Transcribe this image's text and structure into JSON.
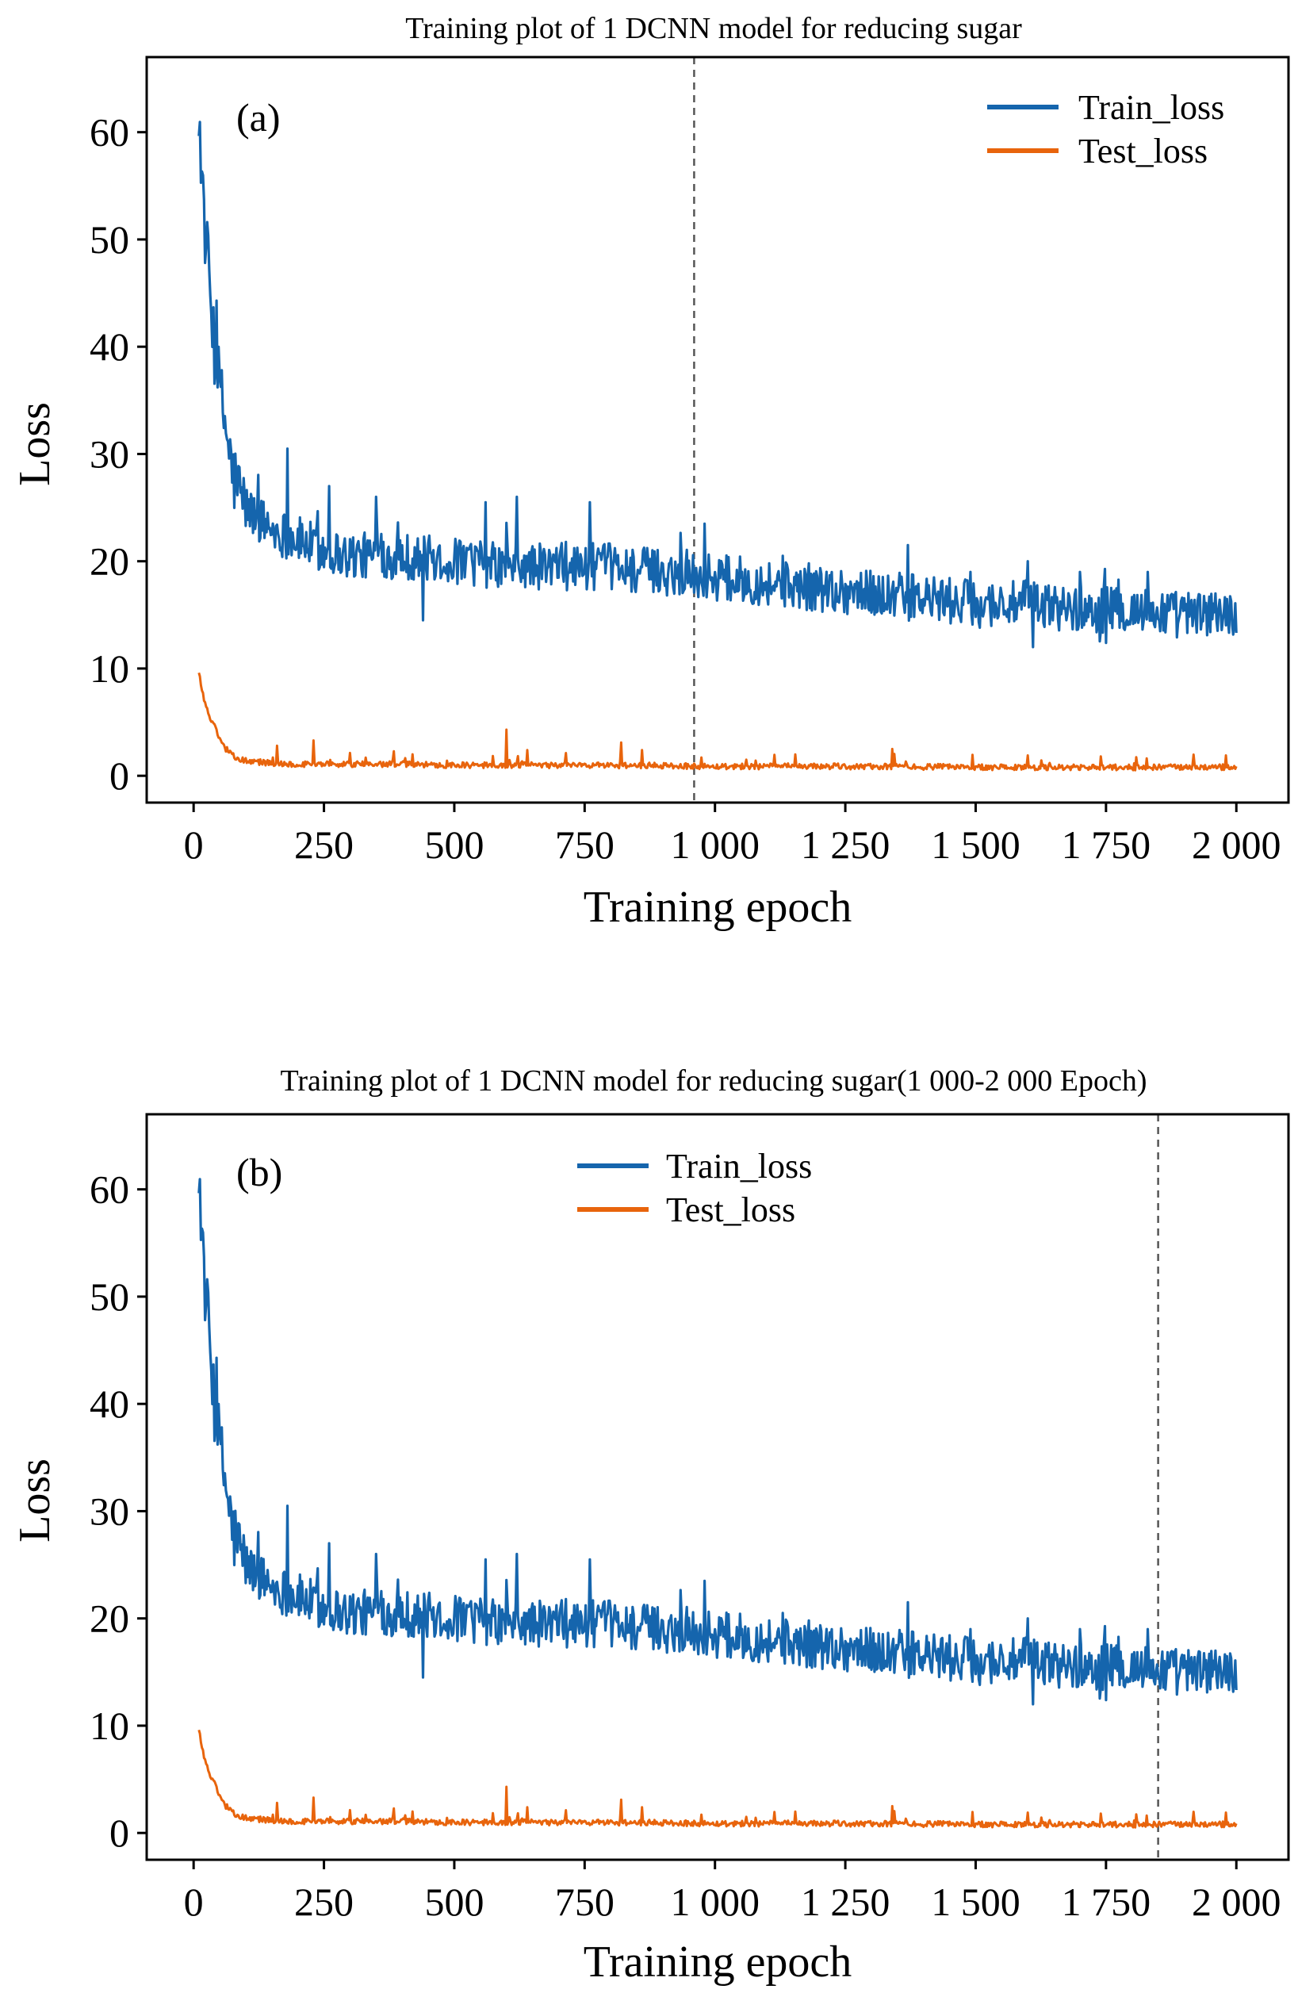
{
  "colors": {
    "train": "#1565ad",
    "test": "#e8640c",
    "marker": "#555555"
  },
  "chart_data": [
    {
      "type": "line",
      "title": "Training plot of 1 DCNN model for reducing sugar",
      "panel_label": "(a)",
      "xlabel": "Training epoch",
      "ylabel": "Loss",
      "xlim": [
        -90,
        2100
      ],
      "ylim": [
        -2.5,
        67
      ],
      "xticks": [
        0,
        250,
        500,
        750,
        1000,
        1250,
        1500,
        1750,
        2000
      ],
      "xtick_labels": [
        "0",
        "250",
        "500",
        "750",
        "1 000",
        "1 250",
        "1 500",
        "1 750",
        "2 000"
      ],
      "yticks": [
        0,
        10,
        20,
        30,
        40,
        50,
        60
      ],
      "ytick_labels": [
        "0",
        "10",
        "20",
        "30",
        "40",
        "50",
        "60"
      ],
      "vline_x": 960,
      "legend": "top-right",
      "grid": false,
      "series": [
        {
          "name": "Train_loss",
          "x": [
            10,
            20,
            30,
            40,
            50,
            60,
            75,
            100,
            150,
            200,
            250,
            300,
            400,
            500,
            600,
            700,
            800,
            900,
            1000,
            1100,
            1200,
            1300,
            1400,
            1500,
            1600,
            1700,
            1800,
            1900,
            2000
          ],
          "y": [
            62,
            52,
            46,
            40,
            36,
            33,
            28,
            25,
            23,
            22,
            21,
            20.5,
            20.5,
            20,
            19.5,
            19.5,
            19.5,
            19,
            18.5,
            18,
            17.5,
            17,
            16.5,
            16,
            16,
            15.5,
            15.5,
            15,
            15
          ]
        },
        {
          "name": "Test_loss",
          "x": [
            10,
            20,
            30,
            40,
            50,
            60,
            75,
            100,
            150,
            200,
            300,
            400,
            500,
            600,
            700,
            800,
            900,
            1000,
            1200,
            1400,
            1600,
            1800,
            2000
          ],
          "y": [
            9.5,
            7,
            5.5,
            4.5,
            3.5,
            2.5,
            1.8,
            1.3,
            1.1,
            1,
            1,
            1,
            0.9,
            0.9,
            0.9,
            0.9,
            0.85,
            0.8,
            0.8,
            0.75,
            0.7,
            0.7,
            0.7
          ]
        }
      ],
      "spikes": {
        "Train_loss": [
          [
            180,
            30.5
          ],
          [
            260,
            27
          ],
          [
            350,
            26
          ],
          [
            440,
            14.5
          ],
          [
            560,
            25.5
          ],
          [
            620,
            26
          ],
          [
            760,
            25.5
          ],
          [
            980,
            23.5
          ],
          [
            1130,
            20.5
          ],
          [
            1370,
            21.5
          ],
          [
            1490,
            19
          ],
          [
            1600,
            20
          ],
          [
            1610,
            12
          ],
          [
            1700,
            19
          ],
          [
            1830,
            19
          ],
          [
            1960,
            17
          ]
        ],
        "Test_loss": [
          [
            160,
            2.8
          ],
          [
            230,
            3.3
          ],
          [
            420,
            2
          ],
          [
            600,
            4.3
          ],
          [
            640,
            2.4
          ],
          [
            820,
            3.1
          ],
          [
            860,
            2.4
          ],
          [
            1340,
            2.5
          ],
          [
            1600,
            1.9
          ],
          [
            1980,
            1.9
          ]
        ]
      }
    },
    {
      "type": "line",
      "title": "Training plot of 1 DCNN model for reducing sugar(1 000-2 000 Epoch)",
      "panel_label": "(b)",
      "xlabel": "Training epoch",
      "ylabel": "Loss",
      "xlim": [
        -90,
        2100
      ],
      "ylim": [
        -2.5,
        67
      ],
      "xticks": [
        0,
        250,
        500,
        750,
        1000,
        1250,
        1500,
        1750,
        2000
      ],
      "xtick_labels": [
        "0",
        "250",
        "500",
        "750",
        "1 000",
        "1 250",
        "1 500",
        "1 750",
        "2 000"
      ],
      "yticks": [
        0,
        10,
        20,
        30,
        40,
        50,
        60
      ],
      "ytick_labels": [
        "0",
        "10",
        "20",
        "30",
        "40",
        "50",
        "60"
      ],
      "vline_x": 1850,
      "legend": "top-center",
      "grid": false,
      "series": [
        {
          "name": "Train_loss",
          "x": [
            10,
            20,
            30,
            40,
            50,
            60,
            75,
            100,
            150,
            200,
            250,
            300,
            400,
            500,
            600,
            700,
            800,
            900,
            1000,
            1100,
            1200,
            1300,
            1400,
            1500,
            1600,
            1700,
            1800,
            1900,
            2000
          ],
          "y": [
            62,
            52,
            46,
            40,
            36,
            33,
            28,
            25,
            23,
            22,
            21,
            20.5,
            20.5,
            20,
            19.5,
            19.5,
            19.5,
            19,
            18.5,
            18,
            17.5,
            17,
            16.5,
            16,
            16,
            15.5,
            15.5,
            15,
            15
          ]
        },
        {
          "name": "Test_loss",
          "x": [
            10,
            20,
            30,
            40,
            50,
            60,
            75,
            100,
            150,
            200,
            300,
            400,
            500,
            600,
            700,
            800,
            900,
            1000,
            1200,
            1400,
            1600,
            1800,
            2000
          ],
          "y": [
            9.5,
            7,
            5.5,
            4.5,
            3.5,
            2.5,
            1.8,
            1.3,
            1.1,
            1,
            1,
            1,
            0.9,
            0.9,
            0.9,
            0.9,
            0.85,
            0.8,
            0.8,
            0.75,
            0.7,
            0.7,
            0.7
          ]
        }
      ],
      "spikes": {
        "Train_loss": [
          [
            180,
            30.5
          ],
          [
            260,
            27
          ],
          [
            350,
            26
          ],
          [
            440,
            14.5
          ],
          [
            560,
            25.5
          ],
          [
            620,
            26
          ],
          [
            760,
            25.5
          ],
          [
            980,
            23.5
          ],
          [
            1130,
            20.5
          ],
          [
            1370,
            21.5
          ],
          [
            1490,
            19
          ],
          [
            1600,
            20
          ],
          [
            1610,
            12
          ],
          [
            1700,
            19
          ],
          [
            1830,
            19
          ],
          [
            1960,
            17
          ]
        ],
        "Test_loss": [
          [
            160,
            2.8
          ],
          [
            230,
            3.3
          ],
          [
            420,
            2
          ],
          [
            600,
            4.3
          ],
          [
            640,
            2.4
          ],
          [
            820,
            3.1
          ],
          [
            860,
            2.4
          ],
          [
            1340,
            2.5
          ],
          [
            1600,
            1.9
          ],
          [
            1980,
            1.9
          ]
        ]
      }
    }
  ]
}
